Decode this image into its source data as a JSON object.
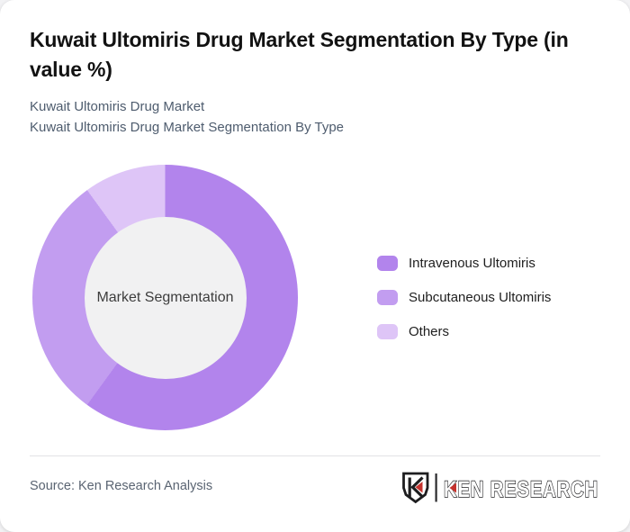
{
  "header": {
    "title": "Kuwait Ultomiris Drug Market Segmentation By Type (in value %)",
    "subtitle_lines": [
      "Kuwait Ultomiris Drug Market",
      "Kuwait Ultomiris Drug Market Segmentation By Type"
    ]
  },
  "chart_data": {
    "type": "pie",
    "variant": "donut",
    "title": "Kuwait Ultomiris Drug Market Segmentation By Type (in value %)",
    "center_label": "Market Segmentation",
    "labels": [
      "Intravenous Ultomiris",
      "Subcutaneous Ultomiris",
      "Others"
    ],
    "values": [
      60,
      30,
      10
    ],
    "unit": "value %",
    "colors": [
      "#b284ec",
      "#c29df0",
      "#dec5f7"
    ],
    "inner_circle_color": "#f1f1f2",
    "start_angle_deg": 0,
    "direction": "clockwise",
    "legend_position": "right"
  },
  "footer": {
    "source": "Source: Ken Research Analysis",
    "brand_text": "KEN RESEARCH"
  },
  "theme": {
    "page_bg": "#f2f2f4",
    "card_bg": "#ffffff",
    "title_color": "#121212",
    "subtitle_color": "#4e5c6e",
    "legend_text_color": "#1e1e1e",
    "center_text_color": "#3d3d3d",
    "divider_color": "#e2e2e5",
    "source_color": "#5a6472",
    "logo_dark": "#1d1d1f",
    "logo_red": "#c5322d"
  }
}
